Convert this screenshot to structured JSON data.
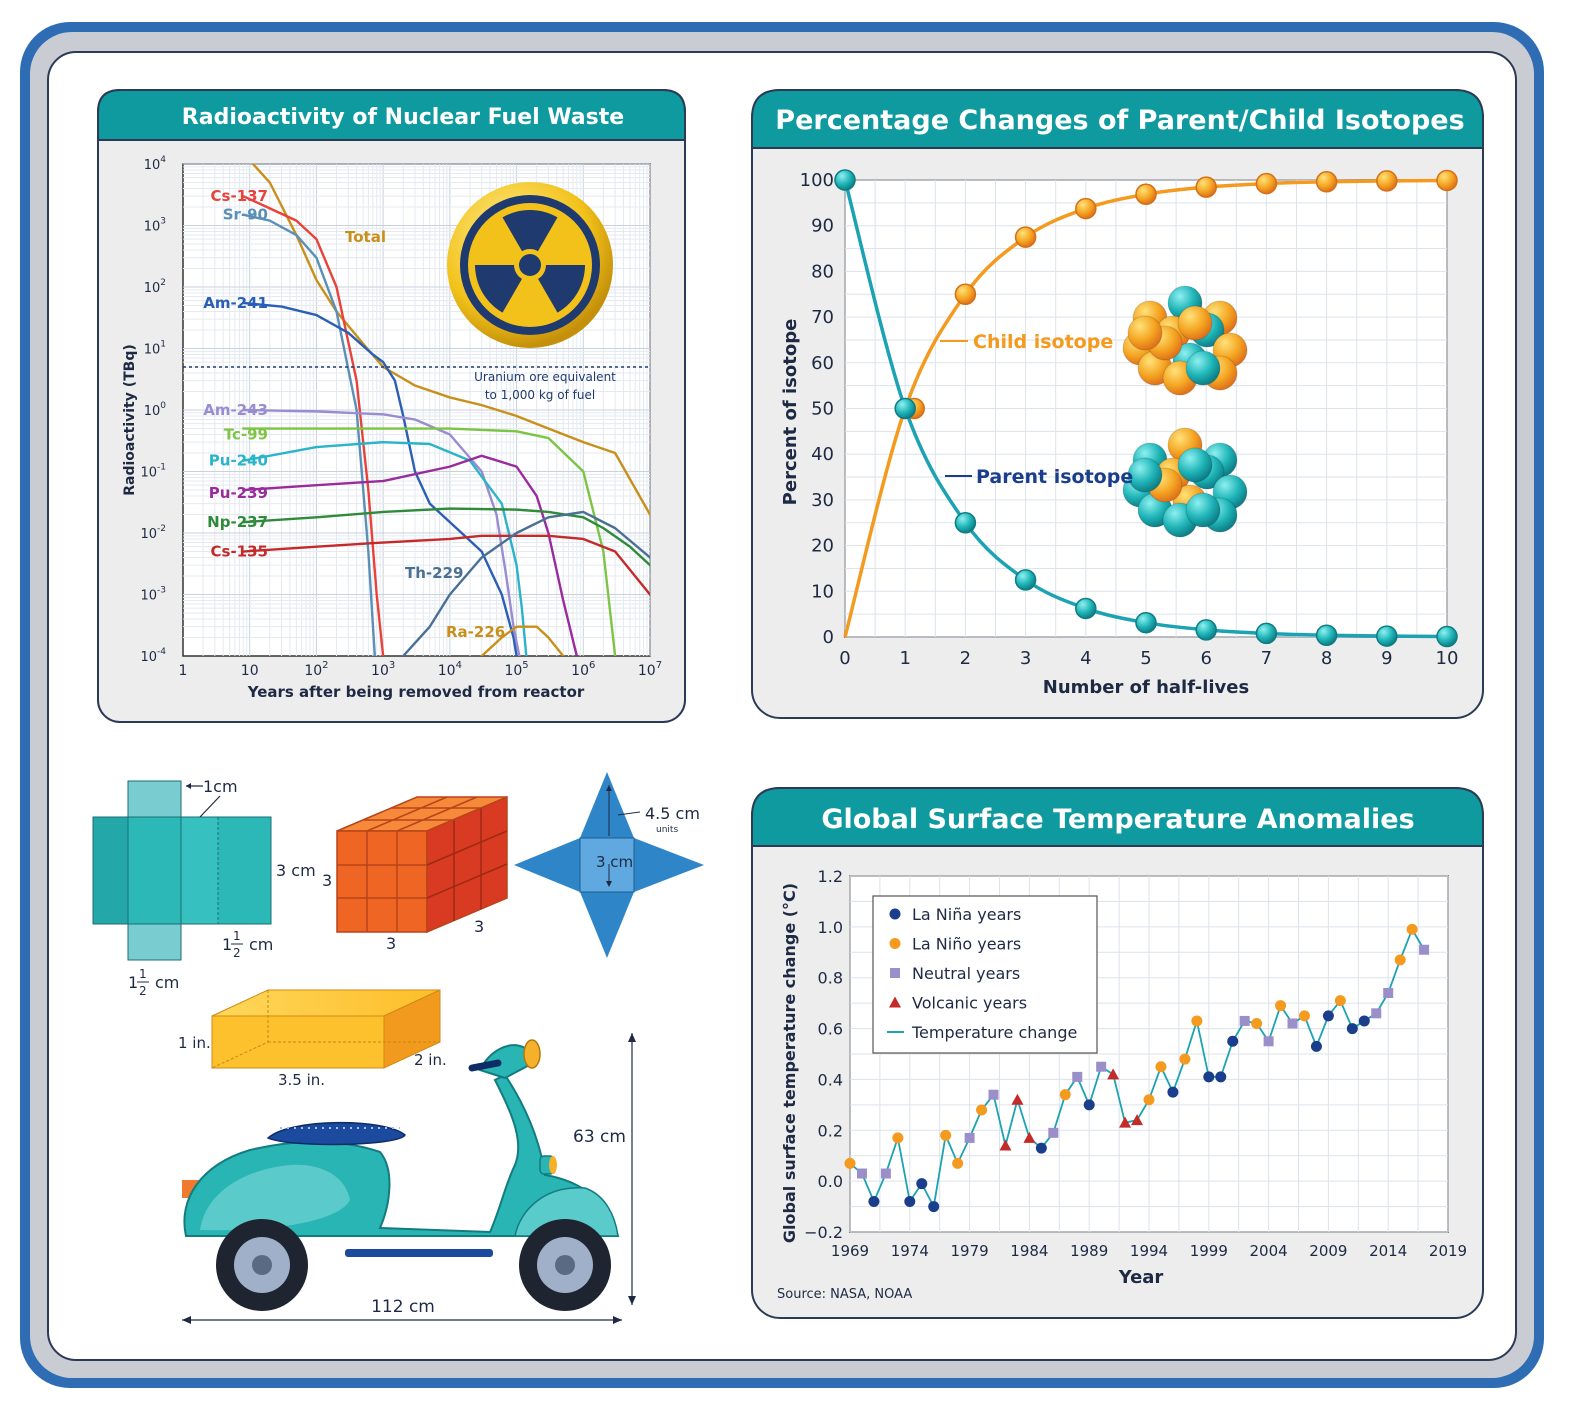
{
  "colors": {
    "frame_blue": "#2E6DB4",
    "frame_grey": "#C9CDD3",
    "teal_header": "#0E9A9F",
    "panel_bg": "#EDEDED",
    "orange": "#F39A1F",
    "teal_line": "#1BA3B3",
    "navy": "#1A3E8C"
  },
  "chart_data": [
    {
      "type": "line",
      "title": "Radioactivity of Nuclear Fuel Waste",
      "xlabel": "Years after being removed from reactor",
      "ylabel": "Radioactivity (TBq)",
      "x_scale": "log",
      "y_scale": "log",
      "xlim": [
        1,
        10000000
      ],
      "ylim": [
        0.0001,
        10000
      ],
      "x_ticks": [
        {
          "v": 1,
          "b": "1",
          "s": ""
        },
        {
          "v": 10,
          "b": "10",
          "s": ""
        },
        {
          "v": 100,
          "b": "10",
          "s": "2"
        },
        {
          "v": 1000,
          "b": "10",
          "s": "3"
        },
        {
          "v": 10000,
          "b": "10",
          "s": "4"
        },
        {
          "v": 100000,
          "b": "10",
          "s": "5"
        },
        {
          "v": 1000000,
          "b": "10",
          "s": "6"
        },
        {
          "v": 10000000,
          "b": "10",
          "s": "7"
        }
      ],
      "y_ticks": [
        {
          "v": 10000,
          "b": "10",
          "s": "4"
        },
        {
          "v": 1000,
          "b": "10",
          "s": "3"
        },
        {
          "v": 100,
          "b": "10",
          "s": "2"
        },
        {
          "v": 10,
          "b": "10",
          "s": "1"
        },
        {
          "v": 1,
          "b": "10",
          "s": "0"
        },
        {
          "v": 0.1,
          "b": "10",
          "s": "-1"
        },
        {
          "v": 0.01,
          "b": "10",
          "s": "-2"
        },
        {
          "v": 0.001,
          "b": "10",
          "s": "-3"
        },
        {
          "v": 0.0001,
          "b": "10",
          "s": "-4"
        }
      ],
      "grid": true,
      "reference_line": {
        "y": 5,
        "label_line1": "Uranium ore equivalent",
        "label_line2": "to 1,000 kg of fuel"
      },
      "series": [
        {
          "name": "Total",
          "color": "#C8901A",
          "x": [
            8,
            20,
            50,
            100,
            200,
            500,
            1000,
            3000,
            10000,
            30000,
            100000,
            300000,
            1000000,
            3000000,
            10000000
          ],
          "y": [
            15000,
            5000,
            700,
            130,
            40,
            12,
            5,
            2.5,
            1.6,
            1.2,
            0.8,
            0.5,
            0.3,
            0.2,
            0.02
          ]
        },
        {
          "name": "Cs-137",
          "color": "#E8423A",
          "x": [
            8,
            20,
            50,
            100,
            200,
            400,
            600,
            800,
            1000
          ],
          "y": [
            3000,
            1900,
            1200,
            600,
            100,
            3,
            0.05,
            0.001,
            0.0001
          ]
        },
        {
          "name": "Sr-90",
          "color": "#5A8FB8",
          "x": [
            8,
            20,
            50,
            100,
            200,
            400,
            600,
            750
          ],
          "y": [
            1500,
            1200,
            700,
            300,
            40,
            1,
            0.005,
            0.0001
          ]
        },
        {
          "name": "Am-241",
          "color": "#2A5FB5",
          "x": [
            8,
            30,
            100,
            300,
            700,
            1000,
            1500,
            2000,
            3000,
            5000,
            10000,
            30000,
            60000,
            90000,
            100000
          ],
          "y": [
            55,
            48,
            35,
            18,
            8,
            6,
            3,
            0.8,
            0.1,
            0.03,
            0.015,
            0.005,
            0.001,
            0.0002,
            0.0001
          ]
        },
        {
          "name": "Am-243",
          "color": "#9A8CD0",
          "x": [
            8,
            100,
            1000,
            3000,
            10000,
            30000,
            50000,
            70000,
            90000,
            110000
          ],
          "y": [
            1,
            0.95,
            0.85,
            0.7,
            0.4,
            0.1,
            0.02,
            0.002,
            0.0003,
            0.0001
          ]
        },
        {
          "name": "Tc-99",
          "color": "#7CC443",
          "x": [
            8,
            100,
            1000,
            10000,
            100000,
            300000,
            1000000,
            2000000,
            3000000
          ],
          "y": [
            0.5,
            0.5,
            0.5,
            0.5,
            0.45,
            0.35,
            0.1,
            0.005,
            0.0001
          ]
        },
        {
          "name": "Pu-240",
          "color": "#2BB3C9",
          "x": [
            8,
            100,
            1000,
            5000,
            20000,
            60000,
            100000,
            120000,
            140000
          ],
          "y": [
            0.15,
            0.25,
            0.3,
            0.28,
            0.15,
            0.03,
            0.003,
            0.0006,
            0.0001
          ]
        },
        {
          "name": "Pu-239",
          "color": "#9A2B9C",
          "x": [
            8,
            100,
            1000,
            10000,
            30000,
            100000,
            200000,
            300000,
            500000,
            800000
          ],
          "y": [
            0.05,
            0.06,
            0.07,
            0.12,
            0.18,
            0.12,
            0.04,
            0.01,
            0.0008,
            0.0001
          ]
        },
        {
          "name": "Np-237",
          "color": "#2E8B3A",
          "x": [
            8,
            100,
            1000,
            10000,
            100000,
            300000,
            1000000,
            2000000,
            5000000,
            10000000
          ],
          "y": [
            0.015,
            0.018,
            0.022,
            0.025,
            0.024,
            0.022,
            0.018,
            0.012,
            0.006,
            0.003
          ]
        },
        {
          "name": "Cs-135",
          "color": "#C42A2A",
          "x": [
            8,
            100,
            1000,
            10000,
            30000,
            100000,
            300000,
            1000000,
            3000000,
            10000000
          ],
          "y": [
            0.005,
            0.006,
            0.007,
            0.008,
            0.009,
            0.009,
            0.009,
            0.008,
            0.005,
            0.001
          ]
        },
        {
          "name": "Th-229",
          "color": "#4A6F95",
          "x": [
            2000,
            5000,
            10000,
            30000,
            100000,
            300000,
            1000000,
            3000000,
            10000000
          ],
          "y": [
            0.0001,
            0.0003,
            0.001,
            0.004,
            0.01,
            0.018,
            0.022,
            0.012,
            0.004
          ]
        },
        {
          "name": "Ra-226",
          "color": "#C8901A",
          "x": [
            30000,
            60000,
            100000,
            200000,
            300000,
            500000,
            700000
          ],
          "y": [
            0.0001,
            0.0002,
            0.0003,
            0.0003,
            0.0002,
            0.0001,
            5e-05
          ]
        }
      ],
      "series_labels": [
        {
          "name": "Cs-137",
          "color": "#E8423A",
          "x": 5,
          "y": 3000,
          "anchor": "end"
        },
        {
          "name": "Sr-90",
          "color": "#5A8FB8",
          "x": 5,
          "y": 1500,
          "anchor": "end"
        },
        {
          "name": "Total",
          "color": "#C8901A",
          "x": 12000,
          "y": 1500,
          "anchor": "start",
          "xpx": 345
        },
        {
          "name": "Am-241",
          "color": "#2A5FB5",
          "x": 5,
          "y": 55,
          "anchor": "end"
        },
        {
          "name": "Am-243",
          "color": "#9A8CD0",
          "x": 5,
          "y": 1,
          "anchor": "end"
        },
        {
          "name": "Tc-99",
          "color": "#7CC443",
          "x": 5,
          "y": 0.4,
          "anchor": "end"
        },
        {
          "name": "Pu-240",
          "color": "#2BB3C9",
          "x": 5,
          "y": 0.15,
          "anchor": "end"
        },
        {
          "name": "Pu-239",
          "color": "#9A2B9C",
          "x": 5,
          "y": 0.045,
          "anchor": "end"
        },
        {
          "name": "Np-237",
          "color": "#2E8B3A",
          "x": 5,
          "y": 0.015,
          "anchor": "end"
        },
        {
          "name": "Cs-135",
          "color": "#C42A2A",
          "x": 5,
          "y": 0.005,
          "anchor": "end"
        },
        {
          "name": "Th-229",
          "color": "#4A6F95",
          "x": 3000,
          "y": 0.001,
          "anchor": "start"
        },
        {
          "name": "Ra-226",
          "color": "#C8901A",
          "x": 6000,
          "y": 0.0001,
          "anchor": "start"
        }
      ]
    },
    {
      "type": "line",
      "title": "Percentage Changes of Parent/Child Isotopes",
      "xlabel": "Number of half-lives",
      "ylabel": "Percent of isotope",
      "xlim": [
        0,
        10
      ],
      "ylim": [
        0,
        100
      ],
      "x_ticks": [
        0,
        1,
        2,
        3,
        4,
        5,
        6,
        7,
        8,
        9,
        10
      ],
      "y_ticks": [
        0,
        10,
        20,
        30,
        40,
        50,
        60,
        70,
        80,
        90,
        100
      ],
      "grid": true,
      "series": [
        {
          "name": "Child isotope",
          "color": "#F39A1F",
          "x": [
            0,
            1,
            2,
            3,
            4,
            5,
            6,
            7,
            8,
            9,
            10
          ],
          "y": [
            0,
            50,
            75,
            87.5,
            93.75,
            96.88,
            98.44,
            99.22,
            99.61,
            99.8,
            99.9
          ]
        },
        {
          "name": "Parent isotope",
          "color": "#1BA3B3",
          "x": [
            0,
            1,
            2,
            3,
            4,
            5,
            6,
            7,
            8,
            9,
            10
          ],
          "y": [
            100,
            50,
            25,
            12.5,
            6.25,
            3.13,
            1.56,
            0.78,
            0.39,
            0.2,
            0.1
          ]
        }
      ]
    },
    {
      "type": "line",
      "title": "Global Surface Temperature Anomalies",
      "xlabel": "Year",
      "ylabel": "Global surface temperature change (°C)",
      "xlim": [
        1969,
        2019
      ],
      "ylim": [
        -0.2,
        1.2
      ],
      "x_ticks": [
        1969,
        1974,
        1979,
        1984,
        1989,
        1994,
        1999,
        2004,
        2009,
        2014,
        2019
      ],
      "y_ticks": [
        1.2,
        1.0,
        0.8,
        0.6,
        0.4,
        0.2,
        0.0,
        -0.2
      ],
      "y_tick_labels": [
        "1.2",
        "1.0",
        "0.8",
        "0.6",
        "0.4",
        "0.2",
        "0.0",
        "−0.2"
      ],
      "grid": true,
      "legend_position": "top-left",
      "legend": [
        {
          "label": "La Niña years",
          "marker": "circle",
          "color": "#1A3E8C"
        },
        {
          "label": "La Niño years",
          "marker": "circle",
          "color": "#F39A1F"
        },
        {
          "label": "Neutral years",
          "marker": "square",
          "color": "#9B8FC9"
        },
        {
          "label": "Volcanic years",
          "marker": "triangle",
          "color": "#C42A2A"
        },
        {
          "label": "Temperature change",
          "marker": "line",
          "color": "#1BA3B3"
        }
      ],
      "source": "Source: NASA, NOAA",
      "points": [
        {
          "x": 1969,
          "y": 0.07,
          "cat": "nino"
        },
        {
          "x": 1970,
          "y": 0.03,
          "cat": "neutral"
        },
        {
          "x": 1971,
          "y": -0.08,
          "cat": "nina"
        },
        {
          "x": 1972,
          "y": 0.03,
          "cat": "neutral"
        },
        {
          "x": 1973,
          "y": 0.17,
          "cat": "nino"
        },
        {
          "x": 1974,
          "y": -0.08,
          "cat": "nina"
        },
        {
          "x": 1975,
          "y": -0.01,
          "cat": "nina"
        },
        {
          "x": 1976,
          "y": -0.1,
          "cat": "nina"
        },
        {
          "x": 1977,
          "y": 0.18,
          "cat": "nino"
        },
        {
          "x": 1978,
          "y": 0.07,
          "cat": "nino"
        },
        {
          "x": 1979,
          "y": 0.17,
          "cat": "neutral"
        },
        {
          "x": 1980,
          "y": 0.28,
          "cat": "nino"
        },
        {
          "x": 1981,
          "y": 0.34,
          "cat": "neutral"
        },
        {
          "x": 1982,
          "y": 0.14,
          "cat": "volcanic"
        },
        {
          "x": 1983,
          "y": 0.32,
          "cat": "volcanic"
        },
        {
          "x": 1984,
          "y": 0.17,
          "cat": "volcanic"
        },
        {
          "x": 1985,
          "y": 0.13,
          "cat": "nina"
        },
        {
          "x": 1986,
          "y": 0.19,
          "cat": "neutral"
        },
        {
          "x": 1987,
          "y": 0.34,
          "cat": "nino"
        },
        {
          "x": 1988,
          "y": 0.41,
          "cat": "neutral"
        },
        {
          "x": 1989,
          "y": 0.3,
          "cat": "nina"
        },
        {
          "x": 1990,
          "y": 0.45,
          "cat": "neutral"
        },
        {
          "x": 1991,
          "y": 0.42,
          "cat": "volcanic"
        },
        {
          "x": 1992,
          "y": 0.23,
          "cat": "volcanic"
        },
        {
          "x": 1993,
          "y": 0.24,
          "cat": "volcanic"
        },
        {
          "x": 1994,
          "y": 0.32,
          "cat": "nino"
        },
        {
          "x": 1995,
          "y": 0.45,
          "cat": "nino"
        },
        {
          "x": 1996,
          "y": 0.35,
          "cat": "nina"
        },
        {
          "x": 1997,
          "y": 0.48,
          "cat": "nino"
        },
        {
          "x": 1998,
          "y": 0.63,
          "cat": "nino"
        },
        {
          "x": 1999,
          "y": 0.41,
          "cat": "nina"
        },
        {
          "x": 2000,
          "y": 0.41,
          "cat": "nina"
        },
        {
          "x": 2001,
          "y": 0.55,
          "cat": "nina"
        },
        {
          "x": 2002,
          "y": 0.63,
          "cat": "neutral"
        },
        {
          "x": 2003,
          "y": 0.62,
          "cat": "nino"
        },
        {
          "x": 2004,
          "y": 0.55,
          "cat": "neutral"
        },
        {
          "x": 2005,
          "y": 0.69,
          "cat": "nino"
        },
        {
          "x": 2006,
          "y": 0.62,
          "cat": "neutral"
        },
        {
          "x": 2007,
          "y": 0.65,
          "cat": "nino"
        },
        {
          "x": 2008,
          "y": 0.53,
          "cat": "nina"
        },
        {
          "x": 2009,
          "y": 0.65,
          "cat": "nina"
        },
        {
          "x": 2010,
          "y": 0.71,
          "cat": "nino"
        },
        {
          "x": 2011,
          "y": 0.6,
          "cat": "nina"
        },
        {
          "x": 2012,
          "y": 0.63,
          "cat": "nina"
        },
        {
          "x": 2013,
          "y": 0.66,
          "cat": "neutral"
        },
        {
          "x": 2014,
          "y": 0.74,
          "cat": "neutral"
        },
        {
          "x": 2015,
          "y": 0.87,
          "cat": "nino"
        },
        {
          "x": 2016,
          "y": 0.99,
          "cat": "nino"
        },
        {
          "x": 2017,
          "y": 0.91,
          "cat": "neutral"
        }
      ]
    }
  ],
  "geometry_figures": {
    "net_cuboid": {
      "label_1cm": "1cm",
      "label_3cm": "3 cm",
      "label_half_num": "1",
      "label_half_frac_n": "1",
      "label_half_frac_d": "2",
      "label_half_unit": "cm"
    },
    "cube": {
      "front": "3",
      "bottom": "3",
      "side": "3"
    },
    "pyramid_net": {
      "label_slant": "4.5 cm",
      "label_units": "units",
      "label_base": "3 cm"
    },
    "box": {
      "height": "1 in.",
      "length": "3.5 in.",
      "depth": "2 in."
    },
    "scooter": {
      "height": "63 cm",
      "length": "112 cm"
    }
  }
}
